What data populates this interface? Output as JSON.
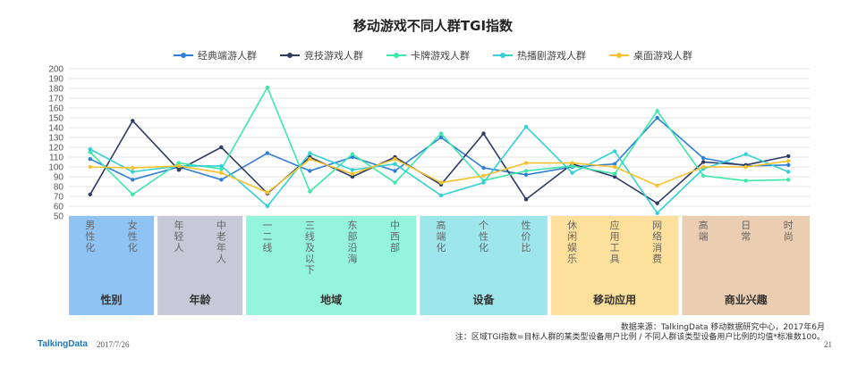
{
  "title": "移动游戏不同人群TGI指数",
  "footer": {
    "source": "数据来源：TalkingData 移动数据研究中心，2017年6月",
    "note": "注：区域TGI指数=目标人群的某类型设备用户比例 / 不同人群该类型设备用户比例的均值*标准数100。",
    "brand": "TalkingData",
    "date": "2017/7/26",
    "page": "21"
  },
  "groups": [
    {
      "name": "性别",
      "color": "#8fc3f4",
      "labels": [
        "男性化",
        "女性化"
      ]
    },
    {
      "name": "年龄",
      "color": "#c5cad6",
      "labels": [
        "年轻人",
        "中老年人"
      ]
    },
    {
      "name": "地域",
      "color": "#94f4dc",
      "labels": [
        "一二线",
        "三线及以下",
        "东部沿海",
        "中西部"
      ]
    },
    {
      "name": "设备",
      "color": "#9de6ec",
      "labels": [
        "高端化",
        "个性化",
        "性价比"
      ]
    },
    {
      "name": "移动应用",
      "color": "#fde09b",
      "labels": [
        "休闲娱乐",
        "应用工具",
        "网络消费"
      ]
    },
    {
      "name": "商业兴趣",
      "color": "#ebcdb1",
      "labels": [
        "高端",
        "日常",
        "时尚"
      ]
    }
  ],
  "chart_data": {
    "type": "line",
    "title": "移动游戏不同人群TGI指数",
    "categories": [
      "男性化",
      "女性化",
      "年轻人",
      "中老年人",
      "一二线",
      "三线及以下",
      "东部沿海",
      "中西部",
      "高端化",
      "个性化",
      "性价比",
      "休闲娱乐",
      "应用工具",
      "网络消费",
      "高端",
      "日常",
      "时尚"
    ],
    "ylim": [
      50,
      200
    ],
    "yticks": [
      50,
      60,
      70,
      80,
      90,
      100,
      110,
      120,
      130,
      140,
      150,
      160,
      170,
      180,
      190,
      200
    ],
    "grid": true,
    "legend_position": "top",
    "series": [
      {
        "name": "经典端游人群",
        "color": "#2f7ed8",
        "values": [
          108,
          87,
          100,
          87,
          114,
          96,
          110,
          96,
          130,
          99,
          92,
          100,
          103,
          150,
          109,
          101,
          102
        ]
      },
      {
        "name": "竞技游戏人群",
        "color": "#2e3b63",
        "values": [
          72,
          147,
          97,
          120,
          73,
          110,
          90,
          110,
          82,
          134,
          67,
          103,
          90,
          63,
          105,
          102,
          111
        ]
      },
      {
        "name": "卡牌游戏人群",
        "color": "#3ee8a9",
        "values": [
          115,
          72,
          104,
          98,
          181,
          75,
          113,
          84,
          134,
          86,
          96,
          101,
          93,
          157,
          91,
          86,
          87
        ]
      },
      {
        "name": "热播剧游戏人群",
        "color": "#34d0d6",
        "values": [
          118,
          95,
          101,
          101,
          60,
          114,
          97,
          103,
          71,
          84,
          141,
          94,
          116,
          53,
          98,
          113,
          95
        ]
      },
      {
        "name": "桌面游戏人群",
        "color": "#f7c12e",
        "values": [
          100,
          99,
          101,
          94,
          74,
          108,
          93,
          108,
          84,
          91,
          104,
          104,
          100,
          81,
          100,
          100,
          106
        ]
      }
    ]
  }
}
